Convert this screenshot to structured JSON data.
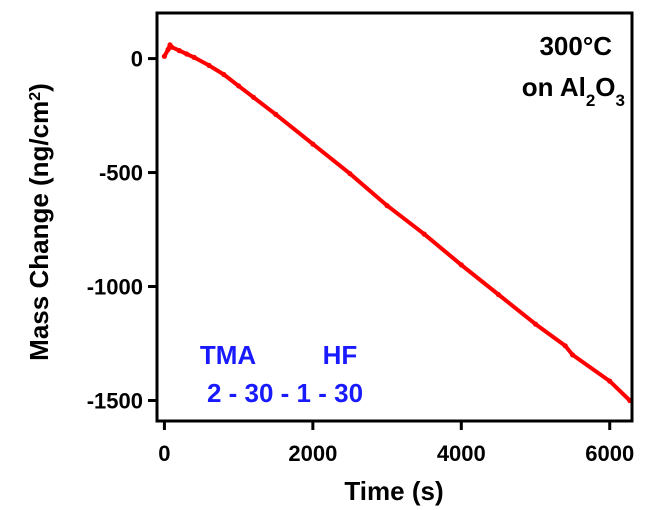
{
  "chart_data": {
    "type": "line",
    "xlabel": "Time (s)",
    "ylabel_main": "Mass Change (ng/cm",
    "ylabel_sup": "2",
    "ylabel_end": ")",
    "xlim": [
      -100,
      6300
    ],
    "ylim": [
      -1590,
      200
    ],
    "x_ticks": [
      0,
      2000,
      4000,
      6000
    ],
    "x_tick_labels": [
      "0",
      "2000",
      "4000",
      "6000"
    ],
    "y_ticks": [
      0,
      -500,
      -1000,
      -1500
    ],
    "y_tick_labels": [
      "0",
      "-500",
      "-1000",
      "-1500"
    ],
    "grid": false,
    "series": [
      {
        "color": "#ff0000",
        "x": [
          0,
          50,
          75,
          100,
          200,
          300,
          400,
          600,
          800,
          1000,
          1200,
          1500,
          2000,
          2500,
          3000,
          3500,
          4000,
          4500,
          5000,
          5400,
          5500,
          6000,
          6270
        ],
        "y": [
          10,
          40,
          60,
          50,
          35,
          20,
          5,
          -30,
          -70,
          -120,
          -170,
          -245,
          -375,
          -505,
          -645,
          -770,
          -905,
          -1035,
          -1165,
          -1260,
          -1300,
          -1415,
          -1500
        ]
      }
    ],
    "annotations": {
      "temperature": "300°C",
      "substrate_prefix": "on Al",
      "substrate_sub1": "2",
      "substrate_mid": "O",
      "substrate_sub2": "3",
      "tma_label": "TMA",
      "hf_label": "HF",
      "sequence": "2 - 30 - 1 - 30"
    }
  }
}
